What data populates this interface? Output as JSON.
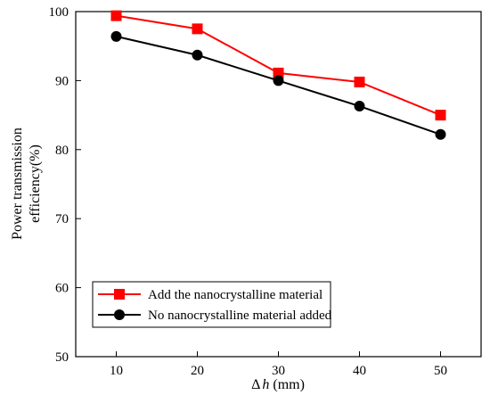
{
  "chart_data": {
    "type": "line",
    "xlabel_prefix": "Δ",
    "xlabel_var": "h",
    "xlabel_unit": " (mm)",
    "ylabel_lines": [
      "Power transmission",
      "efficiency(%)"
    ],
    "x": [
      10,
      20,
      30,
      40,
      50
    ],
    "xticks": [
      10,
      20,
      30,
      40,
      50
    ],
    "yticks": [
      50,
      60,
      70,
      80,
      90,
      100
    ],
    "xlim": [
      5,
      55
    ],
    "ylim": [
      50,
      100
    ],
    "grid": false,
    "legend_position": "bottom-left",
    "series": [
      {
        "name": "Add the nanocrystalline material",
        "values": [
          99.4,
          97.5,
          91.1,
          89.8,
          85.0
        ],
        "color": "#ff0000",
        "marker": "square"
      },
      {
        "name": "No  nanocrystalline material added",
        "values": [
          96.4,
          93.7,
          90.0,
          86.3,
          82.2
        ],
        "color": "#000000",
        "marker": "circle"
      }
    ]
  }
}
